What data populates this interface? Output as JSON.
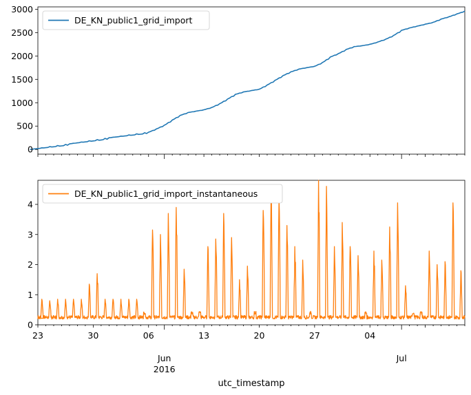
{
  "chart_data": [
    {
      "type": "line",
      "series": [
        {
          "name": "DE_KN_public1_grid_import",
          "color": "#1f77b4",
          "x": [
            "2016-05-15",
            "2016-05-20",
            "2016-05-25",
            "2016-05-30",
            "2016-05-31",
            "2016-06-01",
            "2016-06-02",
            "2016-06-03",
            "2016-06-04",
            "2016-06-05",
            "2016-06-06",
            "2016-06-07",
            "2016-06-08",
            "2016-06-09",
            "2016-06-10",
            "2016-06-11",
            "2016-06-12",
            "2016-06-13",
            "2016-06-14",
            "2016-06-15",
            "2016-06-16",
            "2016-06-17",
            "2016-06-18",
            "2016-06-19",
            "2016-06-20",
            "2016-06-21",
            "2016-06-22",
            "2016-06-23",
            "2016-06-24",
            "2016-06-25",
            "2016-06-26",
            "2016-06-27",
            "2016-06-28",
            "2016-06-29",
            "2016-06-30",
            "2016-07-01",
            "2016-07-02",
            "2016-07-03",
            "2016-07-04",
            "2016-07-05",
            "2016-07-06",
            "2016-07-07",
            "2016-07-08",
            "2016-07-09"
          ],
          "values": [
            0,
            120,
            250,
            370,
            440,
            520,
            630,
            730,
            790,
            820,
            850,
            900,
            980,
            1080,
            1180,
            1230,
            1260,
            1290,
            1380,
            1480,
            1580,
            1660,
            1720,
            1750,
            1780,
            1860,
            1980,
            2050,
            2140,
            2200,
            2220,
            2250,
            2300,
            2360,
            2440,
            2550,
            2600,
            2640,
            2680,
            2720,
            2790,
            2840,
            2900,
            2960
          ]
        }
      ],
      "xlim": [
        "2016-05-16",
        "2016-07-09"
      ],
      "ylim": [
        -100,
        3050
      ],
      "yticks": [
        0,
        500,
        1000,
        1500,
        2000,
        2500,
        3000
      ],
      "grid": false,
      "legend": "upper left"
    },
    {
      "type": "line",
      "series": [
        {
          "name": "DE_KN_public1_grid_import_instantaneous",
          "color": "#ff7f0e",
          "x": [
            "2016-05-16",
            "2016-05-16",
            "2016-05-17",
            "2016-05-18",
            "2016-05-19",
            "2016-05-20",
            "2016-05-21",
            "2016-05-22",
            "2016-05-23",
            "2016-05-24",
            "2016-05-25",
            "2016-05-26",
            "2016-05-27",
            "2016-05-28",
            "2016-05-29",
            "2016-05-30",
            "2016-05-31",
            "2016-06-01",
            "2016-06-02",
            "2016-06-03",
            "2016-06-04",
            "2016-06-05",
            "2016-06-06",
            "2016-06-07",
            "2016-06-08",
            "2016-06-09",
            "2016-06-10",
            "2016-06-11",
            "2016-06-12",
            "2016-06-13",
            "2016-06-14",
            "2016-06-15",
            "2016-06-16",
            "2016-06-17",
            "2016-06-18",
            "2016-06-19",
            "2016-06-20",
            "2016-06-21",
            "2016-06-22",
            "2016-06-23",
            "2016-06-24",
            "2016-06-25",
            "2016-06-26",
            "2016-06-27",
            "2016-06-28",
            "2016-06-29",
            "2016-06-30",
            "2016-07-01",
            "2016-07-02",
            "2016-07-03",
            "2016-07-04",
            "2016-07-05",
            "2016-07-06",
            "2016-07-07",
            "2016-07-08",
            "2016-07-09"
          ],
          "values": [
            0.85,
            0.85,
            0.8,
            0.85,
            0.85,
            0.85,
            0.85,
            1.35,
            1.7,
            0.85,
            0.85,
            0.85,
            0.85,
            0.85,
            0.45,
            3.15,
            3.0,
            3.7,
            3.9,
            1.85,
            0.45,
            0.45,
            2.6,
            2.85,
            3.7,
            2.9,
            1.5,
            1.95,
            0.45,
            3.8,
            4.5,
            4.15,
            3.3,
            2.6,
            2.15,
            0.45,
            4.8,
            4.6,
            2.6,
            3.4,
            2.6,
            2.3,
            0.45,
            2.45,
            2.15,
            3.25,
            4.05,
            1.3,
            0.45,
            0.45,
            2.45,
            2.0,
            2.1,
            4.05,
            1.8,
            1.8
          ],
          "baseline": 0.25
        }
      ],
      "xlim": [
        "2016-05-16",
        "2016-07-09"
      ],
      "ylim": [
        0,
        4.8
      ],
      "yticks": [
        0,
        1,
        2,
        3,
        4
      ],
      "xtick_labels": [
        "23",
        "30",
        "06",
        "13",
        "20",
        "27",
        "04"
      ],
      "month_labels": [
        "Jun\n2016",
        "Jul"
      ],
      "xlabel": "utc_timestamp",
      "grid": false,
      "legend": "upper left"
    }
  ]
}
